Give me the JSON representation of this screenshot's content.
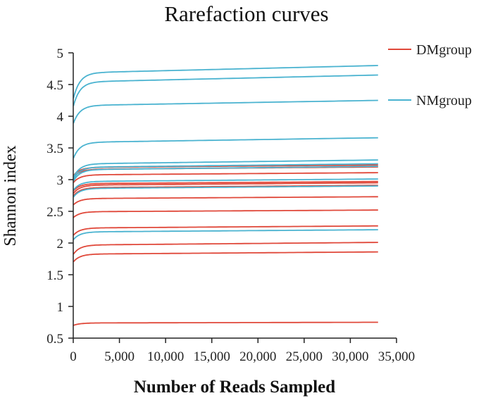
{
  "chart_data": {
    "type": "line",
    "title": "Rarefaction curves",
    "xlabel": "Number of Reads Sampled",
    "ylabel": "Shannon index",
    "xlim": [
      0,
      35000
    ],
    "ylim": [
      0.5,
      5
    ],
    "xticks": [
      0,
      5000,
      10000,
      15000,
      20000,
      25000,
      30000,
      35000
    ],
    "xtick_labels": [
      "0",
      "5,000",
      "10,000",
      "15,000",
      "20,000",
      "25,000",
      "30,000",
      "35,000"
    ],
    "yticks": [
      0.5,
      1,
      1.5,
      2,
      2.5,
      3,
      3.5,
      4,
      4.5,
      5
    ],
    "ytick_labels": [
      "0.5",
      "1",
      "1.5",
      "2",
      "2.5",
      "3",
      "3.5",
      "4",
      "4.5",
      "5"
    ],
    "x_max_sampled": 33000,
    "grid": false,
    "legend_position": "top-right",
    "colors": {
      "DMgroup": "#e0483a",
      "NMgroup": "#4ab3d0"
    },
    "groups": [
      {
        "name": "DMgroup",
        "color": "#e0483a",
        "curves": [
          {
            "start": 0.7,
            "end": 0.75
          },
          {
            "start": 1.7,
            "end": 1.86
          },
          {
            "start": 1.82,
            "end": 2.01
          },
          {
            "start": 2.12,
            "end": 2.27
          },
          {
            "start": 2.4,
            "end": 2.52
          },
          {
            "start": 2.6,
            "end": 2.73
          },
          {
            "start": 2.74,
            "end": 2.91
          },
          {
            "start": 2.78,
            "end": 2.95
          },
          {
            "start": 2.82,
            "end": 2.97
          },
          {
            "start": 2.95,
            "end": 3.11
          },
          {
            "start": 3.03,
            "end": 3.2
          },
          {
            "start": 3.06,
            "end": 3.23
          }
        ]
      },
      {
        "name": "NMgroup",
        "color": "#4ab3d0",
        "curves": [
          {
            "start": 2.05,
            "end": 2.21
          },
          {
            "start": 2.72,
            "end": 2.9
          },
          {
            "start": 2.83,
            "end": 3.01
          },
          {
            "start": 2.97,
            "end": 3.21
          },
          {
            "start": 3.0,
            "end": 3.25
          },
          {
            "start": 3.03,
            "end": 3.31
          },
          {
            "start": 3.33,
            "end": 3.66
          },
          {
            "start": 3.88,
            "end": 4.25
          },
          {
            "start": 4.15,
            "end": 4.65
          },
          {
            "start": 4.27,
            "end": 4.8
          }
        ]
      }
    ]
  }
}
